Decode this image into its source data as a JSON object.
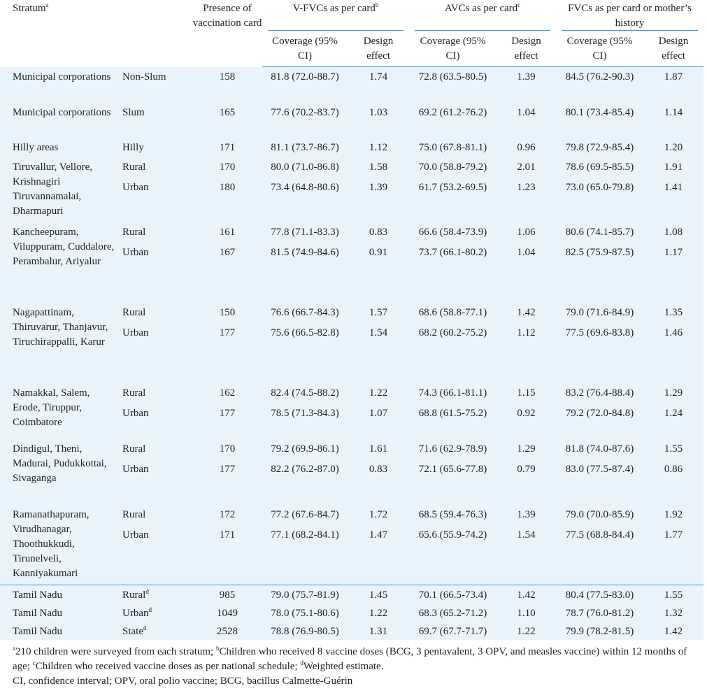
{
  "headers": {
    "stratum": "Stratum",
    "stratum_sup": "a",
    "presence": "Presence of vaccination card",
    "vfvc": "V-FVCs as per card",
    "vfvc_sup": "b",
    "avc": "AVCs as per card",
    "avc_sup": "c",
    "fvc": "FVCs as per card or mother’s history",
    "coverage": "Coverage (95% CI)",
    "design": "Design effect"
  },
  "rows": [
    {
      "name": "Municipal corporations",
      "sub": "Non-Slum",
      "sub_sup": "",
      "n": "158",
      "v_cov": "81.8 (72.0-88.7)",
      "v_de": "1.74",
      "a_cov": "72.8 (63.5-80.5)",
      "a_de": "1.39",
      "f_cov": "84.5 (76.2-90.3)",
      "f_de": "1.87"
    },
    {
      "name": "Municipal corporations",
      "sub": "Slum",
      "sub_sup": "",
      "n": "165",
      "v_cov": "77.6 (70.2-83.7)",
      "v_de": "1.03",
      "a_cov": "69.2 (61.2-76.2)",
      "a_de": "1.04",
      "f_cov": "80.1 (73.4-85.4)",
      "f_de": "1.14"
    },
    {
      "name": "Hilly areas",
      "sub": "Hilly",
      "sub_sup": "",
      "n": "171",
      "v_cov": "81.1 (73.7-86.7)",
      "v_de": "1.12",
      "a_cov": "75.0 (67.8-81.1)",
      "a_de": "0.96",
      "f_cov": "79.8 (72.9-85.4)",
      "f_de": "1.20"
    },
    {
      "name": "Tiruvallur, Vellore, Krishnagiri Tiruvannamalai, Dharmapuri",
      "sub": "Rural",
      "sub_sup": "",
      "n": "170",
      "v_cov": "80.0 (71.0-86.8)",
      "v_de": "1.58",
      "a_cov": "70.0 (58.8-79.2)",
      "a_de": "2.01",
      "f_cov": "78.6 (69.5-85.5)",
      "f_de": "1.91"
    },
    {
      "name": "",
      "sub": "Urban",
      "sub_sup": "",
      "n": "180",
      "v_cov": "73.4 (64.8-80.6)",
      "v_de": "1.39",
      "a_cov": "61.7 (53.2-69.5)",
      "a_de": "1.23",
      "f_cov": "73.0 (65.0-79.8)",
      "f_de": "1.41"
    },
    {
      "name": "Kancheepuram, Viluppuram, Cuddalore, Perambalur, Ariyalur",
      "sub": "Rural",
      "sub_sup": "",
      "n": "161",
      "v_cov": "77.8 (71.1-83.3)",
      "v_de": "0.83",
      "a_cov": "66.6 (58.4-73.9)",
      "a_de": "1.06",
      "f_cov": "80.6 (74.1-85.7)",
      "f_de": "1.08"
    },
    {
      "name": "",
      "sub": "Urban",
      "sub_sup": "",
      "n": "167",
      "v_cov": "81.5 (74.9-84.6)",
      "v_de": "0.91",
      "a_cov": "73.7 (66.1-80.2)",
      "a_de": "1.04",
      "f_cov": "82.5 (75.9-87.5)",
      "f_de": "1.17"
    },
    {
      "name": "Nagapattinam, Thiruvarur, Thanjavur, Tiruchirappalli, Karur",
      "sub": "Rural",
      "sub_sup": "",
      "n": "150",
      "v_cov": "76.6 (66.7-84.3)",
      "v_de": "1.57",
      "a_cov": "68.6 (58.8-77.1)",
      "a_de": "1.42",
      "f_cov": "79.0 (71.6-84.9)",
      "f_de": "1.35"
    },
    {
      "name": "",
      "sub": "Urban",
      "sub_sup": "",
      "n": "177",
      "v_cov": "75.6 (66.5-82.8)",
      "v_de": "1.54",
      "a_cov": "68.2 (60.2-75.2)",
      "a_de": "1.12",
      "f_cov": "77.5 (69.6-83.8)",
      "f_de": "1.46"
    },
    {
      "name": "Namakkal, Salem, Erode, Tiruppur, Coimbatore",
      "sub": "Rural",
      "sub_sup": "",
      "n": "162",
      "v_cov": "82.4 (74.5-88.2)",
      "v_de": "1.22",
      "a_cov": "74.3 (66.1-81.1)",
      "a_de": "1.15",
      "f_cov": "83.2 (76.4-88.4)",
      "f_de": "1.29"
    },
    {
      "name": "",
      "sub": "Urban",
      "sub_sup": "",
      "n": "177",
      "v_cov": "78.5 (71.3-84.3)",
      "v_de": "1.07",
      "a_cov": "68.8 (61.5-75.2)",
      "a_de": "0.92",
      "f_cov": "79.2 (72.0-84.8)",
      "f_de": "1.24"
    },
    {
      "name": "Dindigul, Theni, Madurai, Pudukkottai, Sivaganga",
      "sub": "Rural",
      "sub_sup": "",
      "n": "170",
      "v_cov": "79.2 (69.9-86.1)",
      "v_de": "1.61",
      "a_cov": "71.6 (62.9-78.9)",
      "a_de": "1.29",
      "f_cov": "81.8 (74.0-87.6)",
      "f_de": "1.55"
    },
    {
      "name": "",
      "sub": "Urban",
      "sub_sup": "",
      "n": "177",
      "v_cov": "82.2 (76.2-87.0)",
      "v_de": "0.83",
      "a_cov": "72.1 (65.6-77.8)",
      "a_de": "0.79",
      "f_cov": "83.0 (77.5-87.4)",
      "f_de": "0.86"
    },
    {
      "name": "Ramanathapuram, Virudhanagar, Thoothukkudi, Tirunelveli, Kanniyakumari",
      "sub": "Rural",
      "sub_sup": "",
      "n": "172",
      "v_cov": "77.2 (67.6-84.7)",
      "v_de": "1.72",
      "a_cov": "68.5 (59.4-76.3)",
      "a_de": "1.39",
      "f_cov": "79.0 (70.0-85.9)",
      "f_de": "1.92"
    },
    {
      "name": "",
      "sub": "Urban",
      "sub_sup": "",
      "n": "171",
      "v_cov": "77.1 (68.2-84.1)",
      "v_de": "1.47",
      "a_cov": "65.6 (55.9-74.2)",
      "a_de": "1.54",
      "f_cov": "77.5 (68.8-84.4)",
      "f_de": "1.77"
    },
    {
      "name": "Tamil Nadu",
      "sub": "Rural",
      "sub_sup": "d",
      "n": "985",
      "v_cov": "79.0 (75.7-81.9)",
      "v_de": "1.45",
      "a_cov": "70.1 (66.5-73.4)",
      "a_de": "1.42",
      "f_cov": "80.4 (77.5-83.0)",
      "f_de": "1.55"
    },
    {
      "name": "Tamil Nadu",
      "sub": "Urban",
      "sub_sup": "d",
      "n": "1049",
      "v_cov": "78.0 (75.1-80.6)",
      "v_de": "1.22",
      "a_cov": "68.3 (65.2-71.2)",
      "a_de": "1.10",
      "f_cov": "78.7 (76.0-81.2)",
      "f_de": "1.32"
    },
    {
      "name": "Tamil Nadu",
      "sub": "State",
      "sub_sup": "d",
      "n": "2528",
      "v_cov": "78.8 (76.9-80.5)",
      "v_de": "1.31",
      "a_cov": "69.7 (67.7-71.7)",
      "a_de": "1.22",
      "f_cov": "79.9 (78.2-81.5)",
      "f_de": "1.42"
    }
  ],
  "footnotes": {
    "line1_sup": "a",
    "line1_a": "210 children were surveyed from each stratum; ",
    "line1_sup_b": "b",
    "line1_b": "Children who received 8 vaccine doses (BCG, 3 pentavalent, 3 OPV, and measles vaccine) within 12 months of age; ",
    "line1_sup_c": "c",
    "line1_c": "Children who received vaccine doses as per national schedule; ",
    "line1_sup_d": "d",
    "line1_d": "Weighted estimate.",
    "line2": "CI, confidence interval; OPV, oral polio vaccine; BCG, bacillus Calmette-Guérin"
  }
}
